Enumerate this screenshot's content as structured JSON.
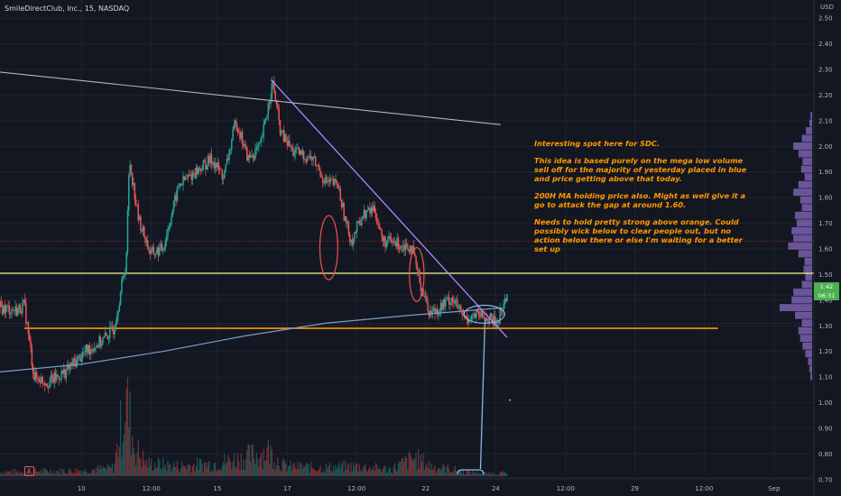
{
  "header": {
    "symbol_line": "SmileDirectClub, Inc., 15, NASDAQ",
    "currency": "USD"
  },
  "price_tag": {
    "value": "1.42",
    "sub": "06:31"
  },
  "event_badge": "E",
  "annotation": {
    "lines": [
      "Interesting spot here for SDC.",
      "This idea is based purely on the mega low volume sell off for the majority of yesterday placed in blue and price getting above that today.",
      "200H MA holding price also. Might as well give it a go to attack the gap at around 1.60.",
      "Needs to hold pretty strong above orange. Could possibly wick below to clear people out, but no action below there or else I'm waiting for a better set up"
    ]
  },
  "colors": {
    "background": "#131722",
    "up": "#26a69a",
    "down": "#ef5350",
    "orange": "#ff9800",
    "ma": "#7e9bc4",
    "purple": "#b388ff",
    "trend_grey": "#b2b5be",
    "gap_red": "#a8323a",
    "yellow": "#f5f38c",
    "annotation_blue": "#8fb5da"
  },
  "chart_data": {
    "type": "candlestick",
    "title": "SmileDirectClub, Inc., 15, NASDAQ",
    "ylabel": "USD",
    "ylim": [
      0.65,
      2.55
    ],
    "yticks": [
      "2.50",
      "2.40",
      "2.30",
      "2.20",
      "2.10",
      "2.00",
      "1.90",
      "1.80",
      "1.70",
      "1.60",
      "1.50",
      "1.40",
      "1.30",
      "1.20",
      "1.10",
      "1.00",
      "0.90",
      "0.80",
      "0.70"
    ],
    "xlim": [
      0,
      100
    ],
    "xticks": [
      {
        "t": 10,
        "label": "10"
      },
      {
        "t": 18.6,
        "label": "12:00"
      },
      {
        "t": 26.7,
        "label": "15"
      },
      {
        "t": 35.3,
        "label": "17"
      },
      {
        "t": 43.8,
        "label": "12:00"
      },
      {
        "t": 52.3,
        "label": "22"
      },
      {
        "t": 60.9,
        "label": "24"
      },
      {
        "t": 69.5,
        "label": "12:00"
      },
      {
        "t": 78.0,
        "label": "29"
      },
      {
        "t": 86.5,
        "label": "12:00"
      },
      {
        "t": 95.1,
        "label": "Sep"
      }
    ],
    "price_path": [
      [
        0,
        1.37
      ],
      [
        2.0,
        1.36
      ],
      [
        3.0,
        1.38
      ],
      [
        4.2,
        1.1
      ],
      [
        6.0,
        1.08
      ],
      [
        8.0,
        1.12
      ],
      [
        10.5,
        1.2
      ],
      [
        12.5,
        1.24
      ],
      [
        14.0,
        1.29
      ],
      [
        15.5,
        1.55
      ],
      [
        15.9,
        1.95
      ],
      [
        17.0,
        1.72
      ],
      [
        18.5,
        1.58
      ],
      [
        20.0,
        1.6
      ],
      [
        22.0,
        1.85
      ],
      [
        24.0,
        1.9
      ],
      [
        26.0,
        1.95
      ],
      [
        27.5,
        1.88
      ],
      [
        29.0,
        2.1
      ],
      [
        30.5,
        1.95
      ],
      [
        32.0,
        2.0
      ],
      [
        33.5,
        2.25
      ],
      [
        34.5,
        2.05
      ],
      [
        36.0,
        1.98
      ],
      [
        38.5,
        1.95
      ],
      [
        40.0,
        1.86
      ],
      [
        41.5,
        1.85
      ],
      [
        42.5,
        1.7
      ],
      [
        43.2,
        1.63
      ],
      [
        44.5,
        1.73
      ],
      [
        46.0,
        1.76
      ],
      [
        47.0,
        1.63
      ],
      [
        49.0,
        1.62
      ],
      [
        50.5,
        1.61
      ],
      [
        51.7,
        1.46
      ],
      [
        52.8,
        1.35
      ],
      [
        54.0,
        1.37
      ],
      [
        55.5,
        1.41
      ],
      [
        57.0,
        1.33
      ],
      [
        58.5,
        1.34
      ],
      [
        60.0,
        1.33
      ],
      [
        61.0,
        1.31
      ],
      [
        62.3,
        1.42
      ]
    ],
    "volume_path": [
      [
        0,
        0.05
      ],
      [
        5,
        0.06
      ],
      [
        10,
        0.07
      ],
      [
        14,
        0.1
      ],
      [
        15.5,
        0.95
      ],
      [
        16.5,
        0.35
      ],
      [
        18,
        0.15
      ],
      [
        22,
        0.12
      ],
      [
        26,
        0.15
      ],
      [
        30,
        0.22
      ],
      [
        33,
        0.3
      ],
      [
        35,
        0.12
      ],
      [
        40,
        0.1
      ],
      [
        44,
        0.12
      ],
      [
        48,
        0.08
      ],
      [
        51,
        0.22
      ],
      [
        53,
        0.12
      ],
      [
        57,
        0.06
      ],
      [
        60,
        0.03
      ],
      [
        62.3,
        0.04
      ]
    ],
    "levels": [
      {
        "name": "yellow",
        "price": 1.505,
        "x0": 0,
        "x1": 100
      },
      {
        "name": "orange",
        "price": 1.29,
        "x0": 3.0,
        "x1": 88.2
      },
      {
        "name": "gap",
        "price": 1.63,
        "x0": 0,
        "x1": 100
      },
      {
        "name": "current",
        "price": 1.42,
        "x0": 0,
        "x1": 100
      },
      {
        "name": "low",
        "price": 1.31,
        "x0": 0,
        "x1": 100
      }
    ],
    "trendlines": [
      {
        "name": "grey-trend",
        "p": [
          [
            0,
            2.29
          ],
          [
            61.5,
            2.085
          ]
        ]
      },
      {
        "name": "purple-trend",
        "p": [
          [
            33.3,
            2.26
          ],
          [
            62.3,
            1.255
          ]
        ]
      },
      {
        "name": "ma-200h",
        "p": [
          [
            0,
            1.12
          ],
          [
            10,
            1.15
          ],
          [
            20,
            1.2
          ],
          [
            30,
            1.26
          ],
          [
            40,
            1.31
          ],
          [
            50,
            1.34
          ],
          [
            56,
            1.355
          ],
          [
            61.7,
            1.37
          ]
        ]
      }
    ],
    "ellipses": [
      {
        "t": 40.4,
        "price": 1.605,
        "rt": 1.1,
        "rp": 0.125
      },
      {
        "t": 51.2,
        "price": 1.5,
        "rt": 0.9,
        "rp": 0.105
      },
      {
        "t": 59.5,
        "price": 1.345,
        "rt": 2.5,
        "rp": 0.035
      }
    ],
    "volume_profile_bins": [
      [
        2.12,
        0.05
      ],
      [
        2.09,
        0.08
      ],
      [
        2.06,
        0.18
      ],
      [
        2.03,
        0.3
      ],
      [
        2.0,
        0.55
      ],
      [
        1.97,
        0.4
      ],
      [
        1.94,
        0.28
      ],
      [
        1.91,
        0.32
      ],
      [
        1.88,
        0.22
      ],
      [
        1.85,
        0.4
      ],
      [
        1.82,
        0.55
      ],
      [
        1.79,
        0.35
      ],
      [
        1.76,
        0.3
      ],
      [
        1.73,
        0.5
      ],
      [
        1.7,
        0.45
      ],
      [
        1.67,
        0.6
      ],
      [
        1.64,
        0.55
      ],
      [
        1.61,
        0.7
      ],
      [
        1.58,
        0.4
      ],
      [
        1.55,
        0.22
      ],
      [
        1.52,
        0.25
      ],
      [
        1.49,
        0.2
      ],
      [
        1.46,
        0.3
      ],
      [
        1.43,
        0.55
      ],
      [
        1.4,
        0.6
      ],
      [
        1.37,
        0.95
      ],
      [
        1.34,
        0.5
      ],
      [
        1.31,
        0.3
      ],
      [
        1.28,
        0.4
      ],
      [
        1.25,
        0.35
      ],
      [
        1.22,
        0.28
      ],
      [
        1.19,
        0.2
      ],
      [
        1.16,
        0.12
      ],
      [
        1.13,
        0.08
      ],
      [
        1.1,
        0.05
      ]
    ]
  }
}
